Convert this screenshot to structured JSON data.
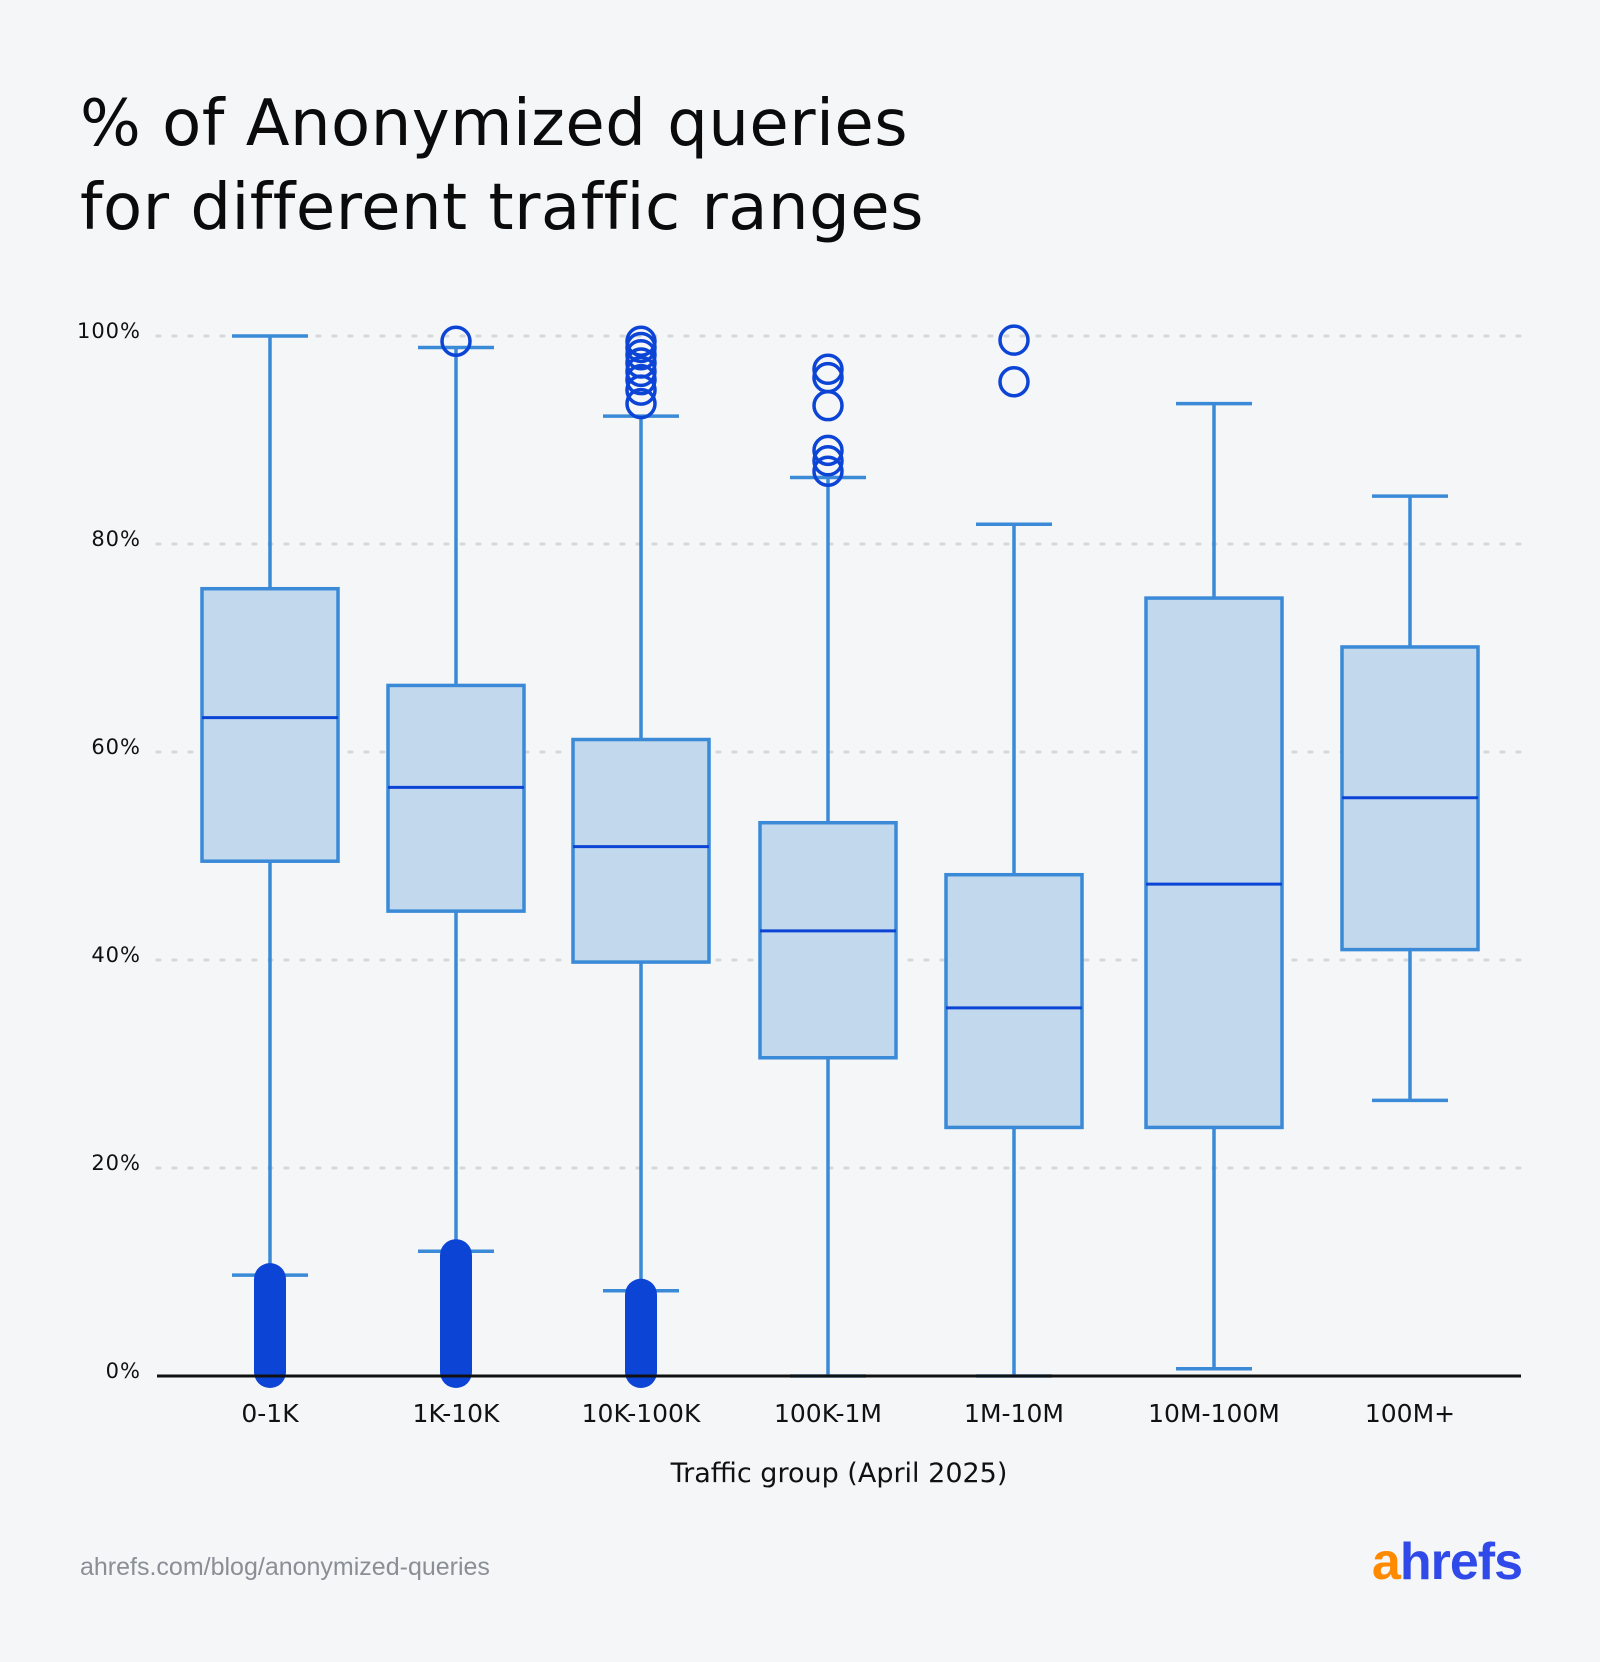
{
  "title_lines": [
    "% of Anonymized queries",
    "for different traffic ranges"
  ],
  "footer": "ahrefs.com/blog/anonymized-queries",
  "logo": {
    "part1": "a",
    "part2": "hrefs"
  },
  "colors": {
    "box_fill": "#c2d8ec",
    "box_stroke": "#3a8ad8",
    "median": "#0c44d6",
    "outlier": "#0c44d6",
    "grid": "#d4d6d9",
    "axis": "#111111",
    "logo_orange": "#ff8a00",
    "logo_blue": "#2f4ae8"
  },
  "chart_data": {
    "type": "box",
    "xlabel": "Traffic group (April 2025)",
    "ylabel": "",
    "ylim": [
      0,
      100
    ],
    "yticks": [
      0,
      20,
      40,
      60,
      80,
      100
    ],
    "ytick_labels": [
      "0%",
      "20%",
      "40%",
      "60%",
      "80%",
      "100%"
    ],
    "grid": "horizontal dotted",
    "categories": [
      "0-1K",
      "1K-10K",
      "10K-100K",
      "100K-1M",
      "1M-10M",
      "10M-100M",
      "100M+"
    ],
    "boxes": [
      {
        "whisker_low": 9.7,
        "q1": 49.5,
        "median": 63.3,
        "q3": 75.7,
        "whisker_high": 100,
        "outliers": [],
        "dense_outlier_range": [
          0,
          9.7
        ]
      },
      {
        "whisker_low": 12.0,
        "q1": 44.7,
        "median": 56.6,
        "q3": 66.4,
        "whisker_high": 98.9,
        "outliers": [
          99.5
        ],
        "dense_outlier_range": [
          0,
          12.0
        ]
      },
      {
        "whisker_low": 8.2,
        "q1": 39.8,
        "median": 50.9,
        "q3": 61.2,
        "whisker_high": 92.3,
        "outliers": [
          93.5,
          94.8,
          95.8,
          96.6,
          97.4,
          98.2,
          98.9,
          99.5
        ],
        "dense_outlier_range": [
          0,
          8.2
        ]
      },
      {
        "whisker_low": 0,
        "q1": 30.6,
        "median": 42.8,
        "q3": 53.2,
        "whisker_high": 86.4,
        "outliers": [
          87.0,
          88.0,
          89.0,
          93.3,
          96.0,
          96.8
        ],
        "dense_outlier_range": null
      },
      {
        "whisker_low": 0,
        "q1": 23.9,
        "median": 35.4,
        "q3": 48.2,
        "whisker_high": 81.9,
        "outliers": [
          95.6,
          99.6
        ],
        "dense_outlier_range": null
      },
      {
        "whisker_low": 0.7,
        "q1": 23.9,
        "median": 47.3,
        "q3": 74.8,
        "whisker_high": 93.5,
        "outliers": [],
        "dense_outlier_range": null
      },
      {
        "whisker_low": 26.5,
        "q1": 41.0,
        "median": 55.6,
        "q3": 70.1,
        "whisker_high": 84.6,
        "outliers": [],
        "dense_outlier_range": null
      }
    ]
  }
}
